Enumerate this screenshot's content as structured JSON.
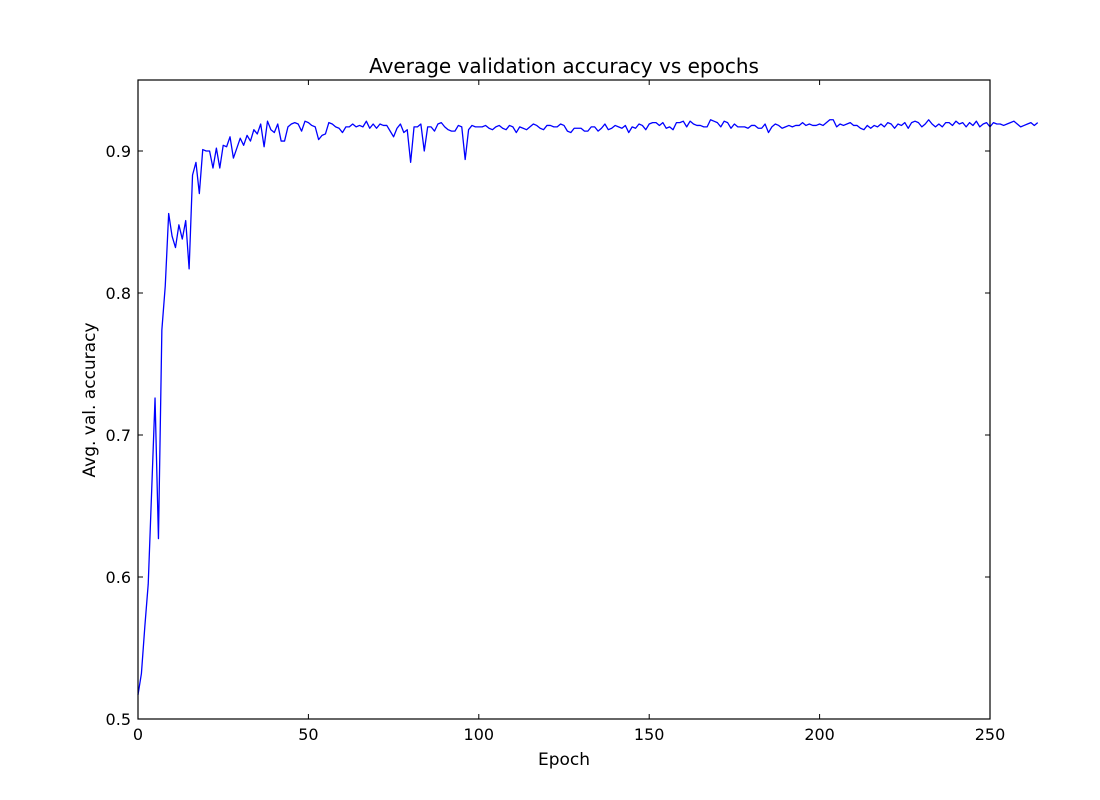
{
  "chart_data": {
    "type": "line",
    "title": "Average validation accuracy vs epochs",
    "xlabel": "Epoch",
    "ylabel": "Avg. val. accuracy",
    "xlim": [
      0,
      250
    ],
    "ylim": [
      0.5,
      0.95
    ],
    "x_ticks": [
      0,
      50,
      100,
      150,
      200,
      250
    ],
    "y_ticks": [
      0.5,
      0.6,
      0.7,
      0.8,
      0.9
    ],
    "x_tick_labels": [
      "0",
      "50",
      "100",
      "150",
      "200",
      "250"
    ],
    "y_tick_labels": [
      "0.5",
      "0.6",
      "0.7",
      "0.8",
      "0.9"
    ],
    "grid": false,
    "legend": "none",
    "series": [
      {
        "color": "#0000ff",
        "x_start": 0,
        "x_step": 1,
        "values": [
          0.517,
          0.532,
          0.565,
          0.595,
          0.66,
          0.726,
          0.627,
          0.774,
          0.805,
          0.856,
          0.84,
          0.832,
          0.848,
          0.838,
          0.851,
          0.817,
          0.883,
          0.892,
          0.87,
          0.901,
          0.9,
          0.9,
          0.888,
          0.902,
          0.888,
          0.904,
          0.903,
          0.91,
          0.895,
          0.902,
          0.909,
          0.904,
          0.911,
          0.907,
          0.915,
          0.912,
          0.919,
          0.903,
          0.921,
          0.915,
          0.913,
          0.919,
          0.907,
          0.907,
          0.917,
          0.919,
          0.92,
          0.919,
          0.914,
          0.921,
          0.92,
          0.918,
          0.917,
          0.908,
          0.911,
          0.912,
          0.92,
          0.919,
          0.917,
          0.916,
          0.913,
          0.917,
          0.917,
          0.919,
          0.917,
          0.918,
          0.917,
          0.921,
          0.916,
          0.919,
          0.916,
          0.919,
          0.918,
          0.918,
          0.914,
          0.91,
          0.916,
          0.919,
          0.913,
          0.915,
          0.892,
          0.917,
          0.917,
          0.919,
          0.9,
          0.917,
          0.917,
          0.914,
          0.919,
          0.92,
          0.917,
          0.915,
          0.914,
          0.914,
          0.918,
          0.917,
          0.894,
          0.915,
          0.918,
          0.917,
          0.917,
          0.917,
          0.918,
          0.916,
          0.915,
          0.917,
          0.918,
          0.916,
          0.915,
          0.918,
          0.917,
          0.913,
          0.917,
          0.916,
          0.915,
          0.917,
          0.919,
          0.918,
          0.916,
          0.915,
          0.918,
          0.918,
          0.917,
          0.917,
          0.919,
          0.918,
          0.914,
          0.913,
          0.916,
          0.916,
          0.916,
          0.914,
          0.914,
          0.917,
          0.917,
          0.914,
          0.916,
          0.919,
          0.915,
          0.916,
          0.918,
          0.917,
          0.916,
          0.918,
          0.913,
          0.917,
          0.916,
          0.919,
          0.918,
          0.915,
          0.919,
          0.92,
          0.92,
          0.918,
          0.92,
          0.916,
          0.917,
          0.915,
          0.92,
          0.92,
          0.921,
          0.917,
          0.921,
          0.919,
          0.918,
          0.918,
          0.917,
          0.917,
          0.922,
          0.921,
          0.92,
          0.917,
          0.921,
          0.92,
          0.916,
          0.919,
          0.917,
          0.917,
          0.917,
          0.916,
          0.918,
          0.918,
          0.916,
          0.916,
          0.919,
          0.913,
          0.917,
          0.919,
          0.918,
          0.916,
          0.917,
          0.918,
          0.917,
          0.918,
          0.918,
          0.92,
          0.918,
          0.919,
          0.918,
          0.918,
          0.919,
          0.918,
          0.92,
          0.922,
          0.922,
          0.917,
          0.919,
          0.918,
          0.919,
          0.92,
          0.918,
          0.918,
          0.916,
          0.915,
          0.918,
          0.916,
          0.918,
          0.917,
          0.919,
          0.917,
          0.92,
          0.919,
          0.916,
          0.919,
          0.918,
          0.92,
          0.916,
          0.92,
          0.921,
          0.92,
          0.917,
          0.919,
          0.922,
          0.919,
          0.917,
          0.919,
          0.917,
          0.92,
          0.92,
          0.918,
          0.921,
          0.919,
          0.92,
          0.917,
          0.92,
          0.918,
          0.921,
          0.917,
          0.919,
          0.92,
          0.917,
          0.92,
          0.919,
          0.919,
          0.918,
          0.919,
          0.92,
          0.921,
          0.919,
          0.917,
          0.918,
          0.919,
          0.92,
          0.918,
          0.92
        ]
      }
    ]
  }
}
